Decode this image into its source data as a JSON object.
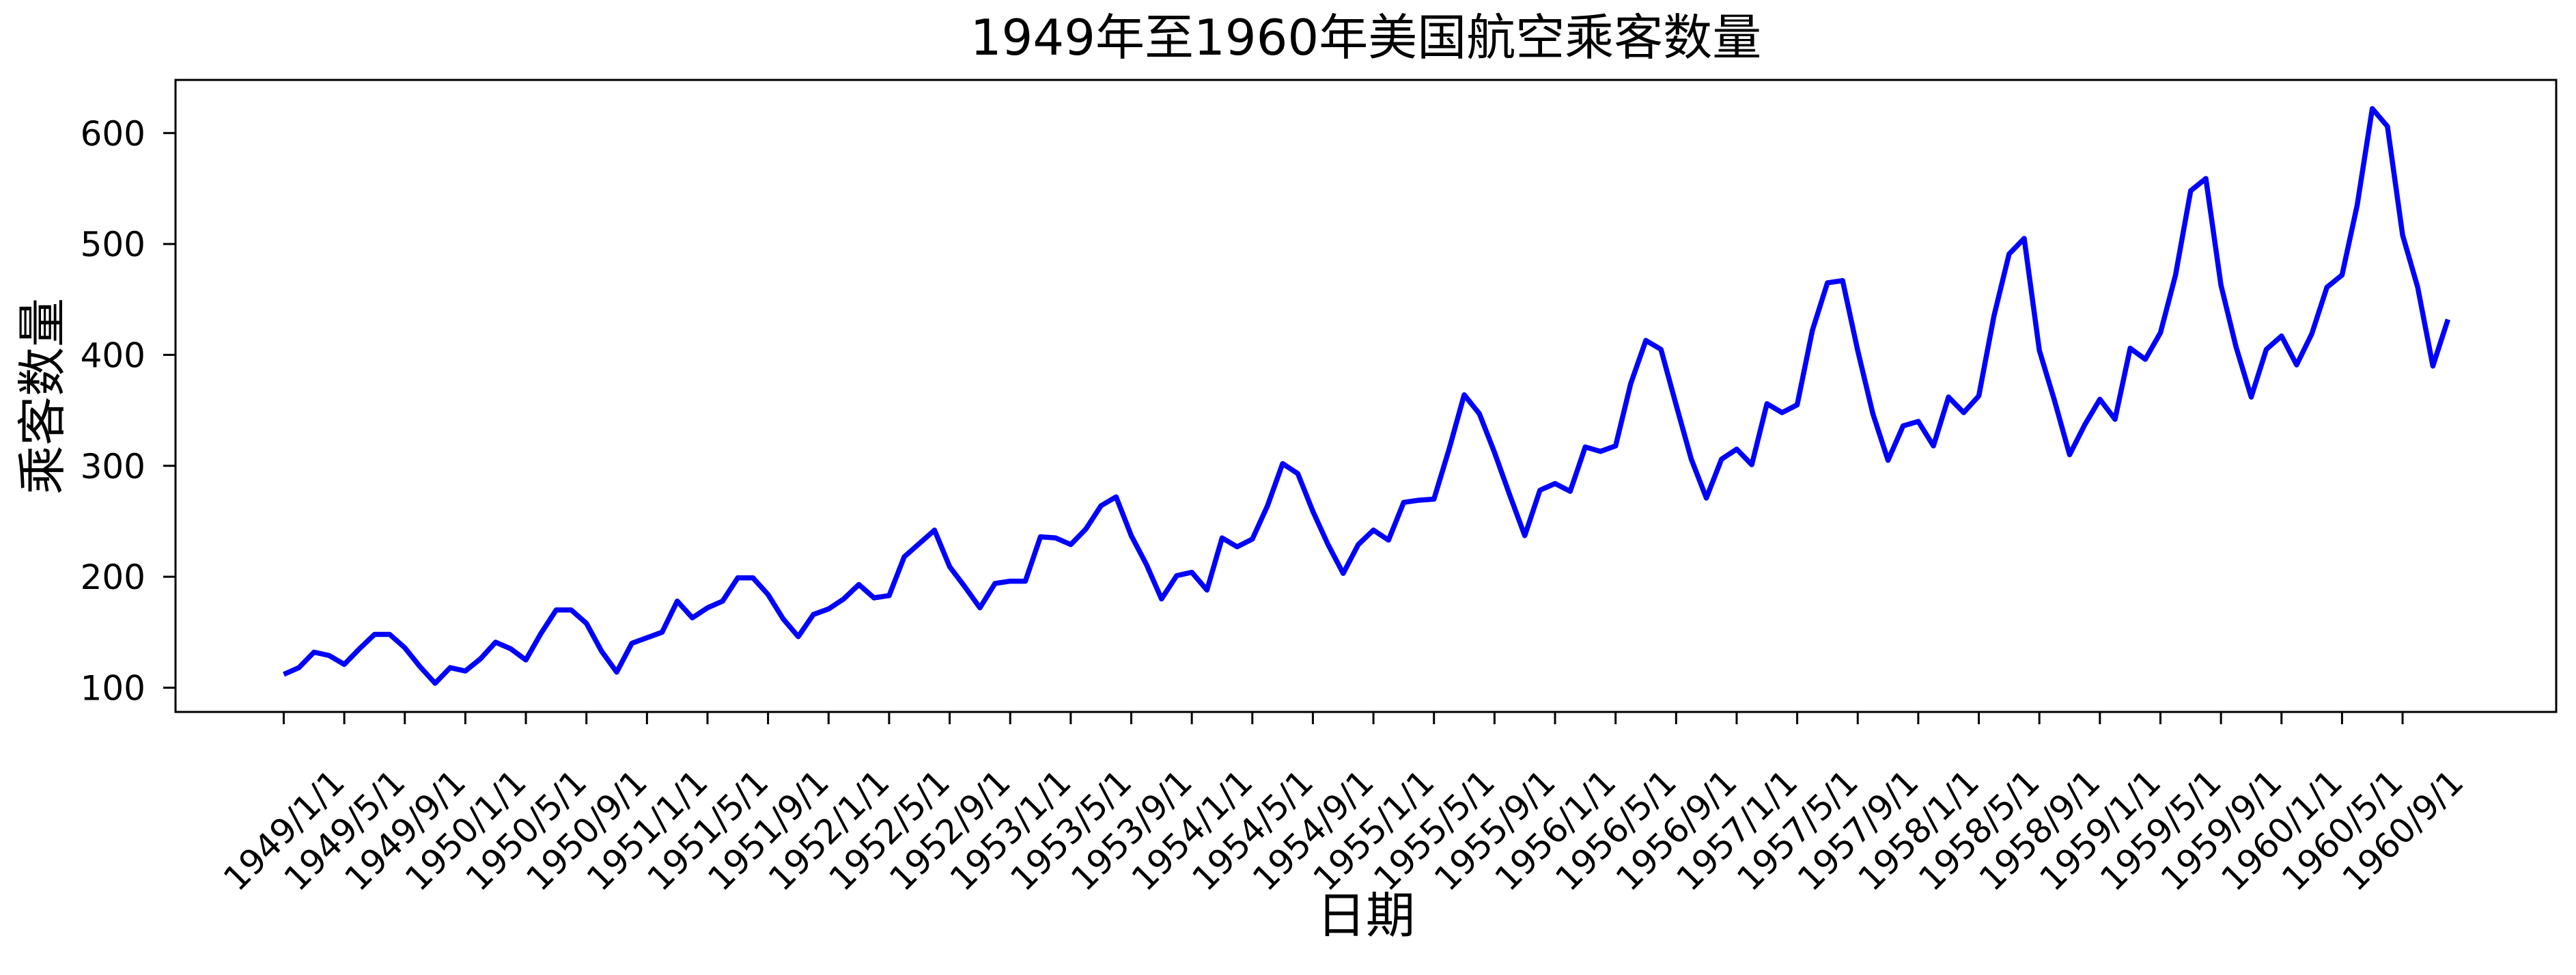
{
  "chart_data": {
    "type": "line",
    "title": "1949年至1960年美国航空乘客数量",
    "xlabel": "日期",
    "ylabel": "乘客数量",
    "background": "#ffffff",
    "text_color": "#000000",
    "axis_color": "#000000",
    "grid": false,
    "legend": "none",
    "x_frequency": "monthly",
    "x_start": "1949/1/1",
    "x_end": "1960/12/1",
    "series": [
      {
        "name": "乘客数量",
        "color": "#0000ff",
        "values": [
          112,
          118,
          132,
          129,
          121,
          135,
          148,
          148,
          136,
          119,
          104,
          118,
          115,
          126,
          141,
          135,
          125,
          149,
          170,
          170,
          158,
          133,
          114,
          140,
          145,
          150,
          178,
          163,
          172,
          178,
          199,
          199,
          184,
          162,
          146,
          166,
          171,
          180,
          193,
          181,
          183,
          218,
          230,
          242,
          209,
          191,
          172,
          194,
          196,
          196,
          236,
          235,
          229,
          243,
          264,
          272,
          237,
          211,
          180,
          201,
          204,
          188,
          235,
          227,
          234,
          264,
          302,
          293,
          259,
          229,
          203,
          229,
          242,
          233,
          267,
          269,
          270,
          315,
          364,
          347,
          312,
          274,
          237,
          278,
          284,
          277,
          317,
          313,
          318,
          374,
          413,
          405,
          355,
          306,
          271,
          306,
          315,
          301,
          356,
          348,
          355,
          422,
          465,
          467,
          404,
          347,
          305,
          336,
          340,
          318,
          362,
          348,
          363,
          435,
          491,
          505,
          404,
          359,
          310,
          337,
          360,
          342,
          406,
          396,
          420,
          472,
          548,
          559,
          463,
          407,
          362,
          405,
          417,
          391,
          419,
          461,
          472,
          535,
          622,
          606,
          508,
          461,
          390,
          432
        ]
      }
    ],
    "x_tick_step_months": 4,
    "x_tick_rotation_deg": 45,
    "x_tick_labels": [
      "1949/1/1",
      "1949/5/1",
      "1949/9/1",
      "1950/1/1",
      "1950/5/1",
      "1950/9/1",
      "1951/1/1",
      "1951/5/1",
      "1951/9/1",
      "1952/1/1",
      "1952/5/1",
      "1952/9/1",
      "1953/1/1",
      "1953/5/1",
      "1953/9/1",
      "1954/1/1",
      "1954/5/1",
      "1954/9/1",
      "1955/1/1",
      "1955/5/1",
      "1955/9/1",
      "1956/1/1",
      "1956/5/1",
      "1956/9/1",
      "1957/1/1",
      "1957/5/1",
      "1957/9/1",
      "1958/1/1",
      "1958/5/1",
      "1958/9/1",
      "1959/1/1",
      "1959/5/1",
      "1959/9/1",
      "1960/1/1",
      "1960/5/1",
      "1960/9/1"
    ],
    "y_ticks": [
      100,
      200,
      300,
      400,
      500,
      600
    ],
    "xlim_month_index": [
      -7.15,
      150.15
    ],
    "ylim": [
      78.1,
      647.9
    ]
  }
}
